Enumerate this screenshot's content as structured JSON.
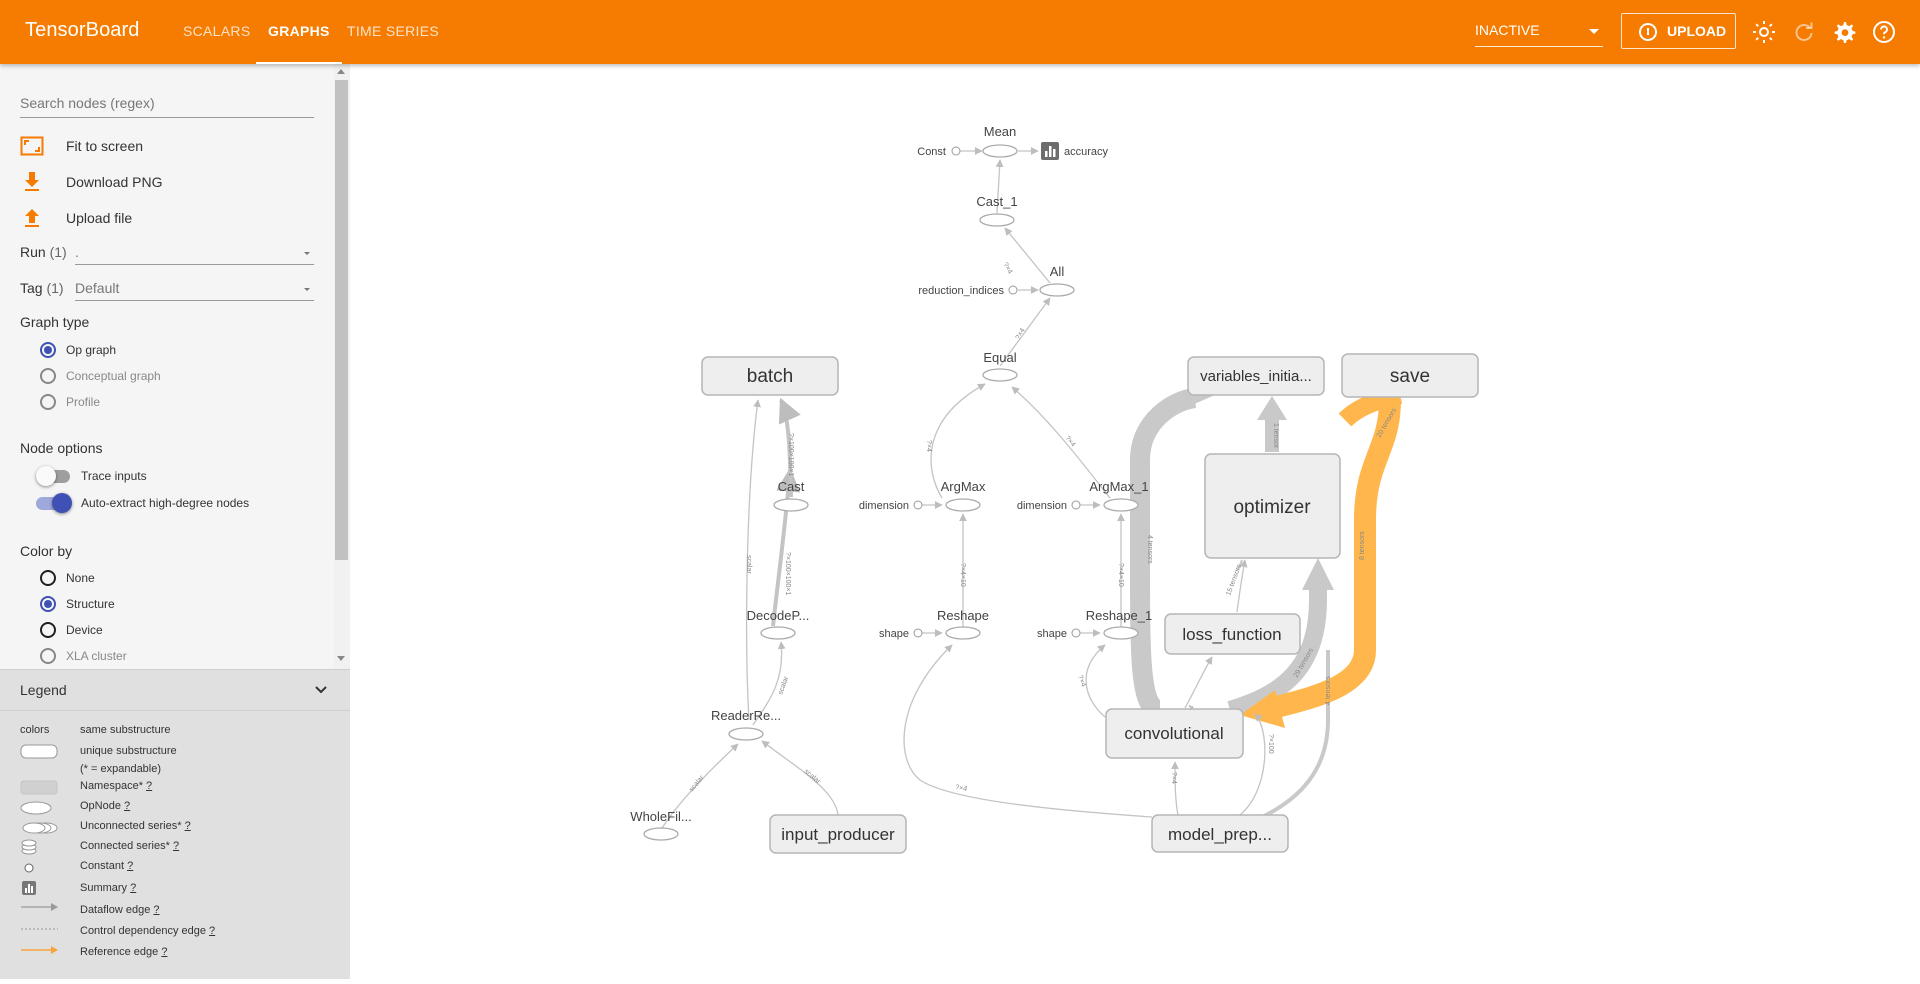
{
  "app": {
    "title": "TensorBoard",
    "tabs": [
      {
        "label": "SCALARS",
        "active": false
      },
      {
        "label": "GRAPHS",
        "active": true
      },
      {
        "label": "TIME SERIES",
        "active": false
      }
    ],
    "status_select": "INACTIVE",
    "upload_label": "UPLOAD",
    "icons": [
      "theme-toggle-icon",
      "reload-icon",
      "settings-icon",
      "help-icon"
    ]
  },
  "sidebar": {
    "search_placeholder": "Search nodes (regex)",
    "actions": [
      "Fit to screen",
      "Download PNG",
      "Upload file"
    ],
    "run": {
      "label": "Run",
      "count": "(1)",
      "value": "."
    },
    "tag": {
      "label": "Tag",
      "count": "(1)",
      "value": "Default"
    },
    "graph_type": {
      "title": "Graph type",
      "options": [
        "Op graph",
        "Conceptual graph",
        "Profile"
      ],
      "selected": "Op graph"
    },
    "node_options": {
      "title": "Node options",
      "trace_inputs": "Trace inputs",
      "trace_inputs_on": false,
      "auto_extract": "Auto-extract high-degree nodes",
      "auto_extract_on": true
    },
    "color_by": {
      "title": "Color by",
      "options": [
        "None",
        "Structure",
        "Device",
        "XLA cluster"
      ],
      "selected": "Structure"
    }
  },
  "legend": {
    "title": "Legend",
    "colors": "colors",
    "same_substructure": "same substructure",
    "unique_substructure": "unique substructure",
    "expandable_note": "(* = expandable)",
    "items": [
      {
        "label": "Namespace*",
        "help": "?"
      },
      {
        "label": "OpNode",
        "help": "?"
      },
      {
        "label": "Unconnected series*",
        "help": "?"
      },
      {
        "label": "Connected series*",
        "help": "?"
      },
      {
        "label": "Constant",
        "help": "?"
      },
      {
        "label": "Summary",
        "help": "?"
      },
      {
        "label": "Dataflow edge",
        "help": "?"
      },
      {
        "label": "Control dependency edge",
        "help": "?"
      },
      {
        "label": "Reference edge",
        "help": "?"
      }
    ]
  },
  "graph": {
    "namespaces": [
      "batch",
      "variables_initia...",
      "save",
      "optimizer",
      "loss_function",
      "convolutional",
      "input_producer",
      "model_prep..."
    ],
    "ops": [
      "Mean",
      "Cast_1",
      "All",
      "Equal",
      "ArgMax",
      "ArgMax_1",
      "Cast",
      "DecodeP...",
      "Reshape",
      "Reshape_1",
      "ReaderRe...",
      "WholeFil..."
    ],
    "constants": [
      "Const",
      "reduction_indices",
      "dimension",
      "dimension",
      "shape",
      "shape"
    ],
    "summaries": [
      "accuracy"
    ],
    "edge_labels": [
      "?×4",
      "?×4",
      "?×4",
      "?×4",
      "?×4×10",
      "?×4×10",
      "scalar",
      "scalar",
      "scalar",
      "scalar",
      "?×100×100×1",
      "?×100×100×1",
      "?×4",
      "?×4",
      "4 tensors",
      "1 tensor",
      "15 tensors",
      "29 tensors",
      "8 tensors",
      "20 tensors",
      "?×4",
      "?×100",
      "?×4",
      "4 tensors"
    ],
    "colors": {
      "accent": "#f57c00",
      "reference_edge": "#ffb74d",
      "selected_radio": "#3f51b5",
      "namespace_fill": "#eeeeee",
      "edge": "#c4c4c4"
    }
  }
}
